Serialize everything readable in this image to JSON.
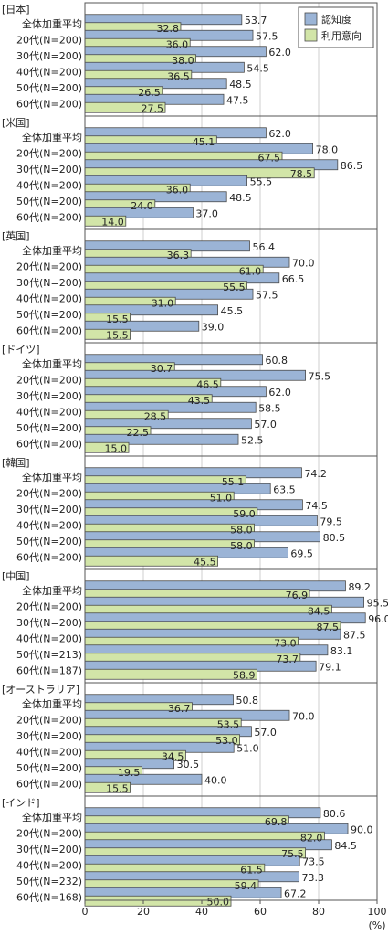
{
  "chart_data": {
    "type": "bar",
    "orientation": "horizontal",
    "xlim": [
      0,
      100
    ],
    "xticks": [
      0,
      20,
      40,
      60,
      80,
      100
    ],
    "unit_label": "(%)",
    "grid": true,
    "legend": {
      "placement": "top-right",
      "entries": [
        "認知度",
        "利用意向"
      ]
    },
    "colors": {
      "認知度": "#9bb4d6",
      "利用意向": "#d2e5a8",
      "bar_border": "#4a4a4a",
      "grid": "#cfcfcf",
      "frame": "#555555"
    },
    "groups": [
      {
        "name": "[日本]",
        "rows": [
          {
            "label": "全体加重平均",
            "awareness": 53.7,
            "intent": 32.8
          },
          {
            "label": "20代(N=200)",
            "awareness": 57.5,
            "intent": 36.0
          },
          {
            "label": "30代(N=200)",
            "awareness": 62.0,
            "intent": 38.0
          },
          {
            "label": "40代(N=200)",
            "awareness": 54.5,
            "intent": 36.5
          },
          {
            "label": "50代(N=200)",
            "awareness": 48.5,
            "intent": 26.5
          },
          {
            "label": "60代(N=200)",
            "awareness": 47.5,
            "intent": 27.5
          }
        ]
      },
      {
        "name": "[米国]",
        "rows": [
          {
            "label": "全体加重平均",
            "awareness": 62.0,
            "intent": 45.1
          },
          {
            "label": "20代(N=200)",
            "awareness": 78.0,
            "intent": 67.5
          },
          {
            "label": "30代(N=200)",
            "awareness": 86.5,
            "intent": 78.5
          },
          {
            "label": "40代(N=200)",
            "awareness": 55.5,
            "intent": 36.0
          },
          {
            "label": "50代(N=200)",
            "awareness": 48.5,
            "intent": 24.0
          },
          {
            "label": "60代(N=200)",
            "awareness": 37.0,
            "intent": 14.0
          }
        ]
      },
      {
        "name": "[英国]",
        "rows": [
          {
            "label": "全体加重平均",
            "awareness": 56.4,
            "intent": 36.3
          },
          {
            "label": "20代(N=200)",
            "awareness": 70.0,
            "intent": 61.0
          },
          {
            "label": "30代(N=200)",
            "awareness": 66.5,
            "intent": 55.5
          },
          {
            "label": "40代(N=200)",
            "awareness": 57.5,
            "intent": 31.0
          },
          {
            "label": "50代(N=200)",
            "awareness": 45.5,
            "intent": 15.5
          },
          {
            "label": "60代(N=200)",
            "awareness": 39.0,
            "intent": 15.5
          }
        ]
      },
      {
        "name": "[ドイツ]",
        "rows": [
          {
            "label": "全体加重平均",
            "awareness": 60.8,
            "intent": 30.7
          },
          {
            "label": "20代(N=200)",
            "awareness": 75.5,
            "intent": 46.5
          },
          {
            "label": "30代(N=200)",
            "awareness": 62.0,
            "intent": 43.5
          },
          {
            "label": "40代(N=200)",
            "awareness": 58.5,
            "intent": 28.5
          },
          {
            "label": "50代(N=200)",
            "awareness": 57.0,
            "intent": 22.5
          },
          {
            "label": "60代(N=200)",
            "awareness": 52.5,
            "intent": 15.0
          }
        ]
      },
      {
        "name": "[韓国]",
        "rows": [
          {
            "label": "全体加重平均",
            "awareness": 74.2,
            "intent": 55.1
          },
          {
            "label": "20代(N=200)",
            "awareness": 63.5,
            "intent": 51.0
          },
          {
            "label": "30代(N=200)",
            "awareness": 74.5,
            "intent": 59.0
          },
          {
            "label": "40代(N=200)",
            "awareness": 79.5,
            "intent": 58.0
          },
          {
            "label": "50代(N=200)",
            "awareness": 80.5,
            "intent": 58.0
          },
          {
            "label": "60代(N=200)",
            "awareness": 69.5,
            "intent": 45.5
          }
        ]
      },
      {
        "name": "[中国]",
        "rows": [
          {
            "label": "全体加重平均",
            "awareness": 89.2,
            "intent": 76.9
          },
          {
            "label": "20代(N=200)",
            "awareness": 95.5,
            "intent": 84.5
          },
          {
            "label": "30代(N=200)",
            "awareness": 96.0,
            "intent": 87.5
          },
          {
            "label": "40代(N=200)",
            "awareness": 87.5,
            "intent": 73.0
          },
          {
            "label": "50代(N=213)",
            "awareness": 83.1,
            "intent": 73.7
          },
          {
            "label": "60代(N=187)",
            "awareness": 79.1,
            "intent": 58.9
          }
        ]
      },
      {
        "name": "[オーストラリア]",
        "rows": [
          {
            "label": "全体加重平均",
            "awareness": 50.8,
            "intent": 36.7
          },
          {
            "label": "20代(N=200)",
            "awareness": 70.0,
            "intent": 53.5
          },
          {
            "label": "30代(N=200)",
            "awareness": 57.0,
            "intent": 53.0
          },
          {
            "label": "40代(N=200)",
            "awareness": 51.0,
            "intent": 34.5
          },
          {
            "label": "50代(N=200)",
            "awareness": 30.5,
            "intent": 19.5
          },
          {
            "label": "60代(N=200)",
            "awareness": 40.0,
            "intent": 15.5
          }
        ]
      },
      {
        "name": "[インド]",
        "rows": [
          {
            "label": "全体加重平均",
            "awareness": 80.6,
            "intent": 69.8
          },
          {
            "label": "20代(N=200)",
            "awareness": 90.0,
            "intent": 82.0
          },
          {
            "label": "30代(N=200)",
            "awareness": 84.5,
            "intent": 75.5
          },
          {
            "label": "40代(N=200)",
            "awareness": 73.5,
            "intent": 61.5
          },
          {
            "label": "50代(N=232)",
            "awareness": 73.3,
            "intent": 59.4
          },
          {
            "label": "60代(N=168)",
            "awareness": 67.2,
            "intent": 50.0
          }
        ]
      }
    ]
  }
}
